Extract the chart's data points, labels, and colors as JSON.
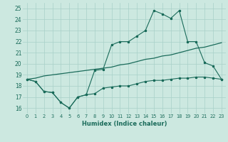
{
  "x": [
    0,
    1,
    2,
    3,
    4,
    5,
    6,
    7,
    8,
    9,
    10,
    11,
    12,
    13,
    14,
    15,
    16,
    17,
    18,
    19,
    20,
    21,
    22,
    23
  ],
  "line_upper": [
    18.6,
    18.4,
    17.5,
    17.4,
    16.5,
    16.0,
    17.0,
    17.2,
    19.4,
    19.5,
    21.7,
    22.0,
    22.0,
    22.5,
    23.0,
    24.8,
    24.5,
    24.1,
    24.8,
    22.0,
    22.0,
    20.1,
    19.8,
    18.6
  ],
  "line_lower": [
    18.6,
    18.4,
    17.5,
    17.4,
    16.5,
    16.0,
    17.0,
    17.2,
    17.3,
    17.8,
    17.9,
    18.0,
    18.0,
    18.2,
    18.4,
    18.5,
    18.5,
    18.6,
    18.7,
    18.7,
    18.8,
    18.8,
    18.7,
    18.6
  ],
  "line_mid": [
    18.6,
    18.7,
    18.9,
    19.0,
    19.1,
    19.2,
    19.3,
    19.4,
    19.5,
    19.6,
    19.7,
    19.9,
    20.0,
    20.2,
    20.4,
    20.5,
    20.7,
    20.8,
    21.0,
    21.2,
    21.4,
    21.5,
    21.7,
    21.9
  ],
  "bg_color": "#cce8e0",
  "grid_color": "#a8d0c8",
  "line_color": "#1a6b5a",
  "xlabel": "Humidex (Indice chaleur)",
  "ylim": [
    15.5,
    25.5
  ],
  "xlim": [
    -0.5,
    23.5
  ],
  "yticks": [
    16,
    17,
    18,
    19,
    20,
    21,
    22,
    23,
    24,
    25
  ],
  "xticks": [
    0,
    1,
    2,
    3,
    4,
    5,
    6,
    7,
    8,
    9,
    10,
    11,
    12,
    13,
    14,
    15,
    16,
    17,
    18,
    19,
    20,
    21,
    22,
    23
  ]
}
